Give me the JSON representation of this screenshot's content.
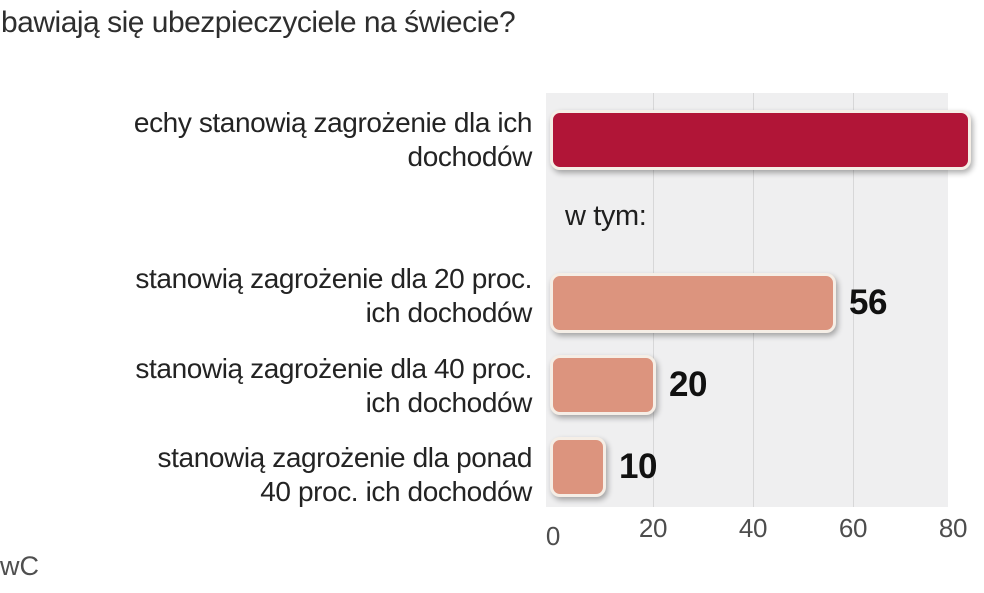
{
  "title": "bawiają się ubezpieczyciele na świecie?",
  "annotation": "w tym:",
  "source": "wC",
  "rows": [
    {
      "label_line1": "echy stanowią zagrożenie dla ich",
      "label_line2": "dochodów",
      "value_label": ""
    },
    {
      "label_line1": "stanowią zagrożenie dla 20 proc.",
      "label_line2": "ich dochodów",
      "value_label": "56"
    },
    {
      "label_line1": "stanowią zagrożenie dla 40 proc.",
      "label_line2": "ich dochodów",
      "value_label": "20"
    },
    {
      "label_line1": "stanowią zagrożenie dla ponad",
      "label_line2": "40 proc. ich dochodów",
      "value_label": "10"
    }
  ],
  "chart_data": {
    "type": "bar",
    "orientation": "horizontal",
    "title": "bawiają się ubezpieczyciele na świecie?",
    "categories": [
      "echy stanowią zagrożenie dla ich dochodów",
      "stanowią zagrożenie dla 20 proc. ich dochodów",
      "stanowią zagrożenie dla 40 proc. ich dochodów",
      "stanowią zagrożenie dla ponad 40 proc. ich dochodów"
    ],
    "values": [
      null,
      56,
      20,
      10
    ],
    "value_labels": [
      "",
      "56",
      "20",
      "10"
    ],
    "first_bar_cropped_right": true,
    "annotation": "w tym:",
    "xlabel": "",
    "ylabel": "",
    "xticks": [
      0,
      20,
      40,
      60,
      80
    ],
    "xlim_visible": [
      0,
      79
    ],
    "grid": "vertical",
    "legend": "none",
    "bar_colors": [
      "#b11537",
      "#dc947e",
      "#dc947e",
      "#dc947e"
    ]
  },
  "colors": {
    "bar_primary": "#b11537",
    "bar_secondary": "#dc947e",
    "bar_border": "#f5eee6",
    "plot_bg": "#efeff0",
    "grid": "#d7d7d8",
    "text": "#232323",
    "tick_text": "#4d4d4d"
  }
}
